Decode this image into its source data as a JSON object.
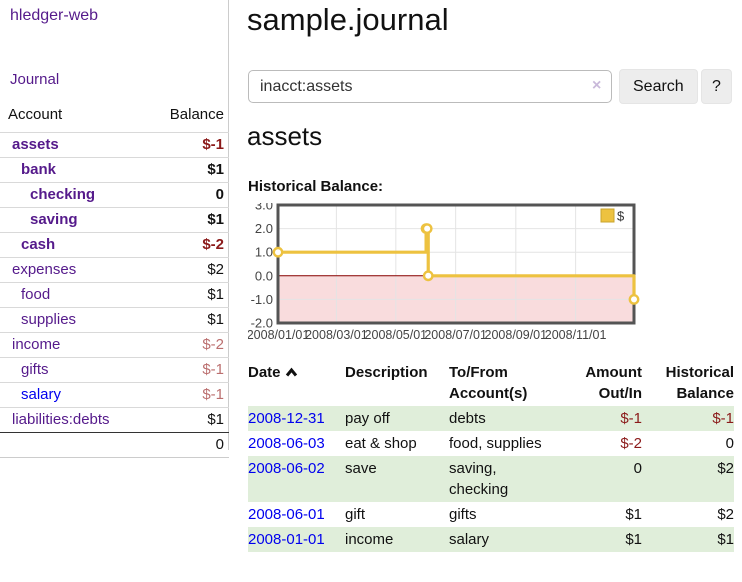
{
  "app": {
    "title": "hledger-web"
  },
  "colors": {
    "link_purple": "#551a8b",
    "link_blue": "#0000ee",
    "neg_strong": "#8b1a1a",
    "neg_light": "#bb6f6f",
    "row_green": "#e0eeda",
    "chart_line": "#edc240",
    "negative_region_fill": "#f9dcdd",
    "zero_line": "#8b0000"
  },
  "icons": {
    "clear_search": "×",
    "help": "?",
    "sort_ascending": "chevron-up-icon"
  },
  "sidebar": {
    "journal_link": "Journal",
    "headers": {
      "account": "Account",
      "balance": "Balance"
    },
    "accounts": [
      {
        "name": "assets",
        "balance": "$-1",
        "level": 1,
        "bold": true,
        "neg": "strong",
        "link": "purple"
      },
      {
        "name": "bank",
        "balance": "$1",
        "level": 2,
        "bold": true,
        "neg": "none",
        "link": "purple"
      },
      {
        "name": "checking",
        "balance": "0",
        "level": 3,
        "bold": true,
        "neg": "none",
        "link": "purple"
      },
      {
        "name": "saving",
        "balance": "$1",
        "level": 3,
        "bold": true,
        "neg": "none",
        "link": "purple"
      },
      {
        "name": "cash",
        "balance": "$-2",
        "level": 2,
        "bold": true,
        "neg": "strong",
        "link": "purple"
      },
      {
        "name": "expenses",
        "balance": "$2",
        "level": 1,
        "bold": false,
        "neg": "none",
        "link": "purple"
      },
      {
        "name": "food",
        "balance": "$1",
        "level": 2,
        "bold": false,
        "neg": "none",
        "link": "purple"
      },
      {
        "name": "supplies",
        "balance": "$1",
        "level": 2,
        "bold": false,
        "neg": "none",
        "link": "purple"
      },
      {
        "name": "income",
        "balance": "$-2",
        "level": 1,
        "bold": false,
        "neg": "light",
        "link": "purple"
      },
      {
        "name": "gifts",
        "balance": "$-1",
        "level": 2,
        "bold": false,
        "neg": "light",
        "link": "purple"
      },
      {
        "name": "salary",
        "balance": "$-1",
        "level": 2,
        "bold": false,
        "neg": "light",
        "link": "blue"
      },
      {
        "name": "liabilities:debts",
        "balance": "$1",
        "level": 1,
        "bold": false,
        "neg": "none",
        "link": "purple"
      }
    ],
    "total": "0"
  },
  "header": {
    "title": "sample.journal"
  },
  "search": {
    "value": "inacct:assets",
    "button_label": "Search",
    "help_label": "?"
  },
  "account_page": {
    "title": "assets",
    "chart_label": "Historical Balance:"
  },
  "chart_data": {
    "type": "line",
    "title": "Historical Balance",
    "step": "after",
    "ylim": [
      -2,
      3
    ],
    "y_ticks": [
      3.0,
      2.0,
      1.0,
      0.0,
      -1.0,
      -2.0
    ],
    "x_ticks": [
      {
        "label": "2008/01/01",
        "x": 0.0
      },
      {
        "label": "2008/03/01",
        "x": 0.164
      },
      {
        "label": "2008/05/01",
        "x": 0.331
      },
      {
        "label": "2008/07/01",
        "x": 0.499
      },
      {
        "label": "2008/09/01",
        "x": 0.668
      },
      {
        "label": "2008/11/01",
        "x": 0.836
      }
    ],
    "series": [
      {
        "name": "$",
        "color": "#edc240",
        "points": [
          {
            "date": "2008-01-01",
            "x": 0.0,
            "y": 1
          },
          {
            "date": "2008-06-01",
            "x": 0.416,
            "y": 2
          },
          {
            "date": "2008-06-02",
            "x": 0.419,
            "y": 2
          },
          {
            "date": "2008-06-03",
            "x": 0.422,
            "y": 0
          },
          {
            "date": "2008-12-31",
            "x": 1.0,
            "y": -1
          }
        ]
      }
    ],
    "legend": {
      "label": "$",
      "position": "top-right"
    },
    "grid": true
  },
  "register": {
    "headers": [
      "Date",
      "Description",
      "To/From Account(s)",
      "Amount Out/In",
      "Historical Balance"
    ],
    "rows": [
      {
        "date": "2008-12-31",
        "description": "pay off",
        "accounts": "debts",
        "amount": "$-1",
        "balance": "$-1",
        "amount_neg": true,
        "balance_neg": true
      },
      {
        "date": "2008-06-03",
        "description": "eat & shop",
        "accounts": "food, supplies",
        "amount": "$-2",
        "balance": "0",
        "amount_neg": true,
        "balance_neg": false
      },
      {
        "date": "2008-06-02",
        "description": "save",
        "accounts": "saving, checking",
        "amount": "0",
        "balance": "$2",
        "amount_neg": false,
        "balance_neg": false
      },
      {
        "date": "2008-06-01",
        "description": "gift",
        "accounts": "gifts",
        "amount": "$1",
        "balance": "$2",
        "amount_neg": false,
        "balance_neg": false
      },
      {
        "date": "2008-01-01",
        "description": "income",
        "accounts": "salary",
        "amount": "$1",
        "balance": "$1",
        "amount_neg": false,
        "balance_neg": false
      }
    ]
  }
}
